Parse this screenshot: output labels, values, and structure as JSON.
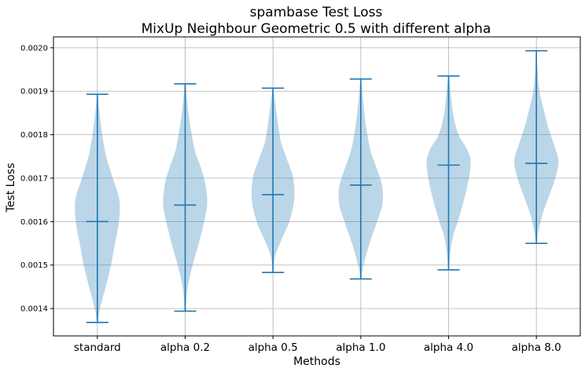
{
  "chart_data": {
    "type": "violin",
    "title": "spambase Test Loss",
    "subtitle": "MixUp Neighbour Geometric 0.5 with different alpha",
    "xlabel": "Methods",
    "ylabel": "Test Loss",
    "ylim": [
      0.001337,
      0.002025
    ],
    "yticks": [
      "0.0014",
      "0.0015",
      "0.0016",
      "0.0017",
      "0.0018",
      "0.0019",
      "0.0020"
    ],
    "grid": true,
    "categories": [
      "standard",
      "alpha 0.2",
      "alpha 0.5",
      "alpha 1.0",
      "alpha 4.0",
      "alpha 8.0"
    ],
    "series": [
      {
        "min": 0.001368,
        "median": 0.0016,
        "max": 0.001893,
        "density": [
          [
            0.001368,
            0.02
          ],
          [
            0.0014,
            0.12
          ],
          [
            0.00145,
            0.38
          ],
          [
            0.0015,
            0.62
          ],
          [
            0.00155,
            0.8
          ],
          [
            0.0016,
            0.98
          ],
          [
            0.00165,
            1.0
          ],
          [
            0.0017,
            0.7
          ],
          [
            0.00175,
            0.4
          ],
          [
            0.0018,
            0.22
          ],
          [
            0.00185,
            0.1
          ],
          [
            0.001893,
            0.02
          ]
        ]
      },
      {
        "min": 0.001394,
        "median": 0.001638,
        "max": 0.001917,
        "density": [
          [
            0.001394,
            0.02
          ],
          [
            0.00145,
            0.12
          ],
          [
            0.0015,
            0.34
          ],
          [
            0.00155,
            0.62
          ],
          [
            0.0016,
            0.86
          ],
          [
            0.00164,
            1.0
          ],
          [
            0.00168,
            0.94
          ],
          [
            0.00172,
            0.74
          ],
          [
            0.00176,
            0.46
          ],
          [
            0.0018,
            0.3
          ],
          [
            0.00185,
            0.15
          ],
          [
            0.001917,
            0.02
          ]
        ]
      },
      {
        "min": 0.001483,
        "median": 0.001662,
        "max": 0.001907,
        "density": [
          [
            0.001483,
            0.02
          ],
          [
            0.00152,
            0.1
          ],
          [
            0.00156,
            0.4
          ],
          [
            0.0016,
            0.74
          ],
          [
            0.00165,
            0.96
          ],
          [
            0.0017,
            0.92
          ],
          [
            0.00174,
            0.66
          ],
          [
            0.00178,
            0.38
          ],
          [
            0.0018,
            0.3
          ],
          [
            0.00185,
            0.16
          ],
          [
            0.001907,
            0.02
          ]
        ]
      },
      {
        "min": 0.001468,
        "median": 0.001684,
        "max": 0.001928,
        "density": [
          [
            0.001468,
            0.02
          ],
          [
            0.0015,
            0.12
          ],
          [
            0.00155,
            0.4
          ],
          [
            0.0016,
            0.74
          ],
          [
            0.00164,
            0.98
          ],
          [
            0.00168,
            0.98
          ],
          [
            0.00172,
            0.74
          ],
          [
            0.00176,
            0.46
          ],
          [
            0.0018,
            0.3
          ],
          [
            0.00185,
            0.16
          ],
          [
            0.001928,
            0.02
          ]
        ]
      },
      {
        "min": 0.001489,
        "median": 0.00173,
        "max": 0.001935,
        "density": [
          [
            0.001489,
            0.02
          ],
          [
            0.00153,
            0.08
          ],
          [
            0.00157,
            0.22
          ],
          [
            0.0016,
            0.42
          ],
          [
            0.00165,
            0.7
          ],
          [
            0.0017,
            0.92
          ],
          [
            0.00174,
            1.0
          ],
          [
            0.00177,
            0.8
          ],
          [
            0.0018,
            0.45
          ],
          [
            0.00185,
            0.2
          ],
          [
            0.001935,
            0.02
          ]
        ]
      },
      {
        "min": 0.00155,
        "median": 0.001734,
        "max": 0.001993,
        "density": [
          [
            0.00155,
            0.02
          ],
          [
            0.00158,
            0.1
          ],
          [
            0.00162,
            0.3
          ],
          [
            0.00166,
            0.58
          ],
          [
            0.0017,
            0.86
          ],
          [
            0.00174,
            1.0
          ],
          [
            0.00178,
            0.78
          ],
          [
            0.00182,
            0.52
          ],
          [
            0.00186,
            0.32
          ],
          [
            0.0019,
            0.14
          ],
          [
            0.00195,
            0.05
          ],
          [
            0.001993,
            0.02
          ]
        ]
      }
    ],
    "colors": {
      "body": "#1f77b4",
      "body_alpha": 0.3,
      "lines": "#1f77b4",
      "grid": "#b0b0b0"
    }
  }
}
